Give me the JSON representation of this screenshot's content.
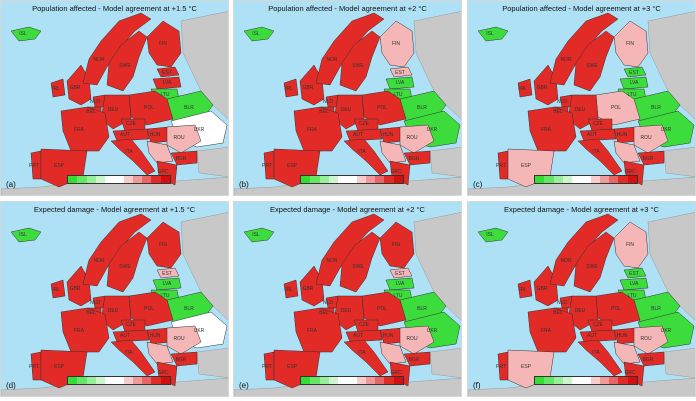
{
  "panels": [
    {
      "title": "Population affected - Model agreement at +1.5 °C",
      "letter": "(a)",
      "fills": {
        "default": "#e22b26",
        "NOR": "#e22b26",
        "SWE": "#e22b26",
        "FIN": "#e22b26",
        "EST": "#e22b26",
        "LVA": "#e22b26",
        "LTU": "#3cdc3c",
        "BLR": "#3cdc3c",
        "UKR": "#ffffff",
        "POL": "#e22b26",
        "ROU": "#f4b6b6",
        "BGR": "#e22b26",
        "GRC": "#e22b26",
        "ITA": "#e22b26",
        "ESP": "#e22b26",
        "FRA": "#e22b26",
        "GBR": "#e22b26",
        "DEU": "#e22b26",
        "BAL": "#f4b6b6"
      }
    },
    {
      "title": "Population affected - Model agreement at +2 °C",
      "letter": "(b)",
      "fills": {
        "default": "#e22b26",
        "NOR": "#e22b26",
        "SWE": "#e22b26",
        "FIN": "#f4b6b6",
        "EST": "#f4b6b6",
        "LVA": "#3cdc3c",
        "LTU": "#3cdc3c",
        "BLR": "#3cdc3c",
        "UKR": "#3cdc3c",
        "POL": "#e22b26",
        "ROU": "#f4b6b6",
        "BGR": "#e22b26",
        "GRC": "#e22b26",
        "ITA": "#e22b26",
        "ESP": "#e22b26",
        "FRA": "#e22b26",
        "GBR": "#e22b26",
        "DEU": "#e22b26",
        "BAL": "#f4b6b6"
      }
    },
    {
      "title": "Population affected - Model agreement at +3 °C",
      "letter": "(c)",
      "fills": {
        "default": "#e22b26",
        "NOR": "#e22b26",
        "SWE": "#e22b26",
        "FIN": "#f4b6b6",
        "EST": "#3cdc3c",
        "LVA": "#3cdc3c",
        "LTU": "#3cdc3c",
        "BLR": "#3cdc3c",
        "UKR": "#3cdc3c",
        "POL": "#f4b6b6",
        "ROU": "#f4b6b6",
        "BGR": "#e22b26",
        "GRC": "#e22b26",
        "ITA": "#e22b26",
        "ESP": "#f4b6b6",
        "FRA": "#e22b26",
        "GBR": "#e22b26",
        "DEU": "#e22b26",
        "BAL": "#f4b6b6"
      }
    },
    {
      "title": "Expected damage - Model agreement at +1.5 °C",
      "letter": "(d)",
      "fills": {
        "default": "#e22b26",
        "NOR": "#e22b26",
        "SWE": "#e22b26",
        "FIN": "#e22b26",
        "EST": "#f4b6b6",
        "LVA": "#3cdc3c",
        "LTU": "#3cdc3c",
        "BLR": "#3cdc3c",
        "UKR": "#ffffff",
        "POL": "#e22b26",
        "ROU": "#f4b6b6",
        "BGR": "#e22b26",
        "GRC": "#e22b26",
        "ITA": "#e22b26",
        "ESP": "#e22b26",
        "FRA": "#e22b26",
        "GBR": "#e22b26",
        "DEU": "#e22b26",
        "BAL": "#f4b6b6"
      }
    },
    {
      "title": "Expected damage - Model agreement at +2 °C",
      "letter": "(e)",
      "fills": {
        "default": "#e22b26",
        "NOR": "#e22b26",
        "SWE": "#e22b26",
        "FIN": "#e22b26",
        "EST": "#f4b6b6",
        "LVA": "#3cdc3c",
        "LTU": "#3cdc3c",
        "BLR": "#3cdc3c",
        "UKR": "#3cdc3c",
        "POL": "#e22b26",
        "ROU": "#f4b6b6",
        "BGR": "#e22b26",
        "GRC": "#e22b26",
        "ITA": "#e22b26",
        "ESP": "#e22b26",
        "FRA": "#e22b26",
        "GBR": "#e22b26",
        "DEU": "#e22b26",
        "BAL": "#f4b6b6"
      }
    },
    {
      "title": "Expected damage - Model agreement at +3 °C",
      "letter": "(f)",
      "fills": {
        "default": "#e22b26",
        "NOR": "#e22b26",
        "SWE": "#e22b26",
        "FIN": "#f4b6b6",
        "EST": "#3cdc3c",
        "LVA": "#3cdc3c",
        "LTU": "#3cdc3c",
        "BLR": "#3cdc3c",
        "UKR": "#3cdc3c",
        "POL": "#e22b26",
        "ROU": "#f4b6b6",
        "BGR": "#e22b26",
        "GRC": "#e22b26",
        "ITA": "#e22b26",
        "ESP": "#f4b6b6",
        "FRA": "#e22b26",
        "GBR": "#e22b26",
        "DEU": "#e22b26",
        "BAL": "#f4b6b6"
      }
    }
  ],
  "country_labels": [
    "ISL",
    "NOR",
    "SWE",
    "FIN",
    "EST",
    "LVA",
    "LTU",
    "BLR",
    "UKR",
    "POL",
    "DEU",
    "GBR",
    "IRL",
    "FRA",
    "ESP",
    "PRT",
    "ITA",
    "AUT",
    "CZE",
    "ROU",
    "BGR",
    "GRC",
    "HUN",
    "BEL",
    "NLD"
  ],
  "legend": {
    "colors": [
      "#33dd33",
      "#66e566",
      "#99ee99",
      "#ccf5cc",
      "#ffffff",
      "#ffffff",
      "#f7cccc",
      "#f09999",
      "#e86666",
      "#e22b26",
      "#d40f0f"
    ]
  },
  "colors": {
    "sea": "#aee1f5",
    "non_eu_land": "#c8c8c8",
    "border": "#333333"
  }
}
